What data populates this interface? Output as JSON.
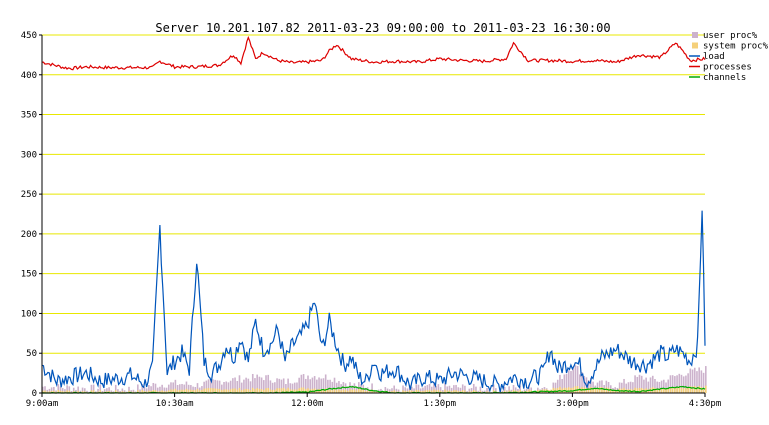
{
  "chart_data": {
    "type": "line",
    "title": "Server 10.201.107.82   2011-03-23 09:00:00 to 2011-03-23 16:30:00",
    "xlabel": "",
    "ylabel": "",
    "xlim": [
      "09:00",
      "16:30"
    ],
    "ylim": [
      0,
      450
    ],
    "grid": true,
    "grid_color": "#e8e800",
    "legend_position": "top-right",
    "x_tick_labels": [
      "9:00am",
      "10:30am",
      "12:00m",
      "1:30pm",
      "3:00pm",
      "4:30pm"
    ],
    "y_tick_labels": [
      "0",
      "50",
      "100",
      "150",
      "200",
      "250",
      "300",
      "350",
      "400",
      "450"
    ],
    "series": [
      {
        "name": "user proc%",
        "kind": "bar",
        "color": "#ccb2cc",
        "x": [
          "09:00",
          "09:30",
          "10:00",
          "10:15",
          "10:30",
          "10:45",
          "11:00",
          "11:15",
          "11:30",
          "11:45",
          "12:00",
          "12:15",
          "12:30",
          "12:45",
          "13:00",
          "13:30",
          "14:00",
          "14:30",
          "14:45",
          "15:00",
          "15:15",
          "15:30",
          "15:45",
          "16:00",
          "16:15",
          "16:30"
        ],
        "values": [
          8,
          6,
          5,
          10,
          12,
          10,
          15,
          18,
          20,
          14,
          22,
          20,
          10,
          8,
          5,
          8,
          6,
          6,
          8,
          35,
          12,
          10,
          20,
          15,
          25,
          30
        ]
      },
      {
        "name": "system proc%",
        "kind": "bar",
        "color": "#f5d07a",
        "x": [
          "09:00",
          "09:30",
          "10:00",
          "10:30",
          "11:00",
          "11:30",
          "12:00",
          "12:30",
          "13:00",
          "13:30",
          "14:00",
          "14:30",
          "15:00",
          "15:30",
          "16:00",
          "16:30"
        ],
        "values": [
          3,
          2,
          2,
          4,
          5,
          5,
          6,
          4,
          2,
          3,
          2,
          3,
          8,
          5,
          6,
          8
        ]
      },
      {
        "name": "load",
        "kind": "line",
        "color": "#0055bb",
        "x": [
          "09:00",
          "09:10",
          "09:20",
          "09:30",
          "09:40",
          "09:50",
          "10:00",
          "10:10",
          "10:15",
          "10:20",
          "10:25",
          "10:30",
          "10:35",
          "10:40",
          "10:45",
          "10:50",
          "10:55",
          "11:00",
          "11:05",
          "11:10",
          "11:15",
          "11:20",
          "11:25",
          "11:30",
          "11:35",
          "11:40",
          "11:45",
          "11:50",
          "11:55",
          "12:00",
          "12:05",
          "12:10",
          "12:15",
          "12:20",
          "12:25",
          "12:30",
          "12:35",
          "12:40",
          "12:45",
          "12:50",
          "13:00",
          "13:10",
          "13:20",
          "13:30",
          "13:40",
          "13:50",
          "14:00",
          "14:10",
          "14:20",
          "14:30",
          "14:40",
          "14:45",
          "14:50",
          "15:00",
          "15:05",
          "15:10",
          "15:20",
          "15:30",
          "15:40",
          "15:50",
          "16:00",
          "16:05",
          "16:10",
          "16:15",
          "16:20",
          "16:25",
          "16:28",
          "16:30"
        ],
        "values": [
          35,
          15,
          20,
          25,
          15,
          18,
          22,
          12,
          30,
          210,
          25,
          40,
          50,
          30,
          170,
          40,
          25,
          35,
          60,
          45,
          70,
          40,
          90,
          55,
          60,
          80,
          40,
          60,
          70,
          85,
          115,
          55,
          90,
          60,
          35,
          45,
          20,
          15,
          40,
          25,
          30,
          10,
          20,
          15,
          25,
          20,
          15,
          10,
          20,
          15,
          25,
          55,
          30,
          40,
          35,
          15,
          45,
          55,
          40,
          35,
          50,
          45,
          55,
          50,
          40,
          60,
          235,
          65
        ]
      },
      {
        "name": "processes",
        "kind": "line",
        "color": "#dd0000",
        "x": [
          "09:00",
          "09:15",
          "09:20",
          "09:30",
          "09:45",
          "10:00",
          "10:15",
          "10:20",
          "10:30",
          "10:45",
          "11:00",
          "11:10",
          "11:15",
          "11:20",
          "11:25",
          "11:30",
          "11:40",
          "11:50",
          "12:00",
          "12:10",
          "12:15",
          "12:20",
          "12:30",
          "12:45",
          "13:00",
          "13:15",
          "13:30",
          "13:45",
          "14:00",
          "14:15",
          "14:20",
          "14:30",
          "14:45",
          "15:00",
          "15:15",
          "15:30",
          "15:45",
          "16:00",
          "16:10",
          "16:15",
          "16:20",
          "16:30"
        ],
        "values": [
          416,
          409,
          408,
          410,
          409,
          409,
          409,
          417,
          410,
          410,
          412,
          425,
          415,
          447,
          420,
          428,
          418,
          415,
          416,
          418,
          430,
          438,
          420,
          416,
          417,
          416,
          420,
          418,
          417,
          420,
          440,
          418,
          418,
          417,
          418,
          416,
          425,
          422,
          440,
          430,
          418,
          420
        ]
      },
      {
        "name": "channels",
        "kind": "line",
        "color": "#00aa00",
        "x": [
          "09:00",
          "09:30",
          "10:00",
          "10:30",
          "11:00",
          "11:30",
          "12:00",
          "12:15",
          "12:30",
          "12:45",
          "13:00",
          "13:30",
          "14:00",
          "14:30",
          "15:00",
          "15:15",
          "15:30",
          "15:45",
          "16:00",
          "16:15",
          "16:30"
        ],
        "values": [
          0,
          0,
          0,
          0,
          0,
          0,
          1,
          5,
          8,
          3,
          0,
          0,
          0,
          1,
          3,
          6,
          3,
          2,
          5,
          8,
          5
        ]
      }
    ]
  }
}
